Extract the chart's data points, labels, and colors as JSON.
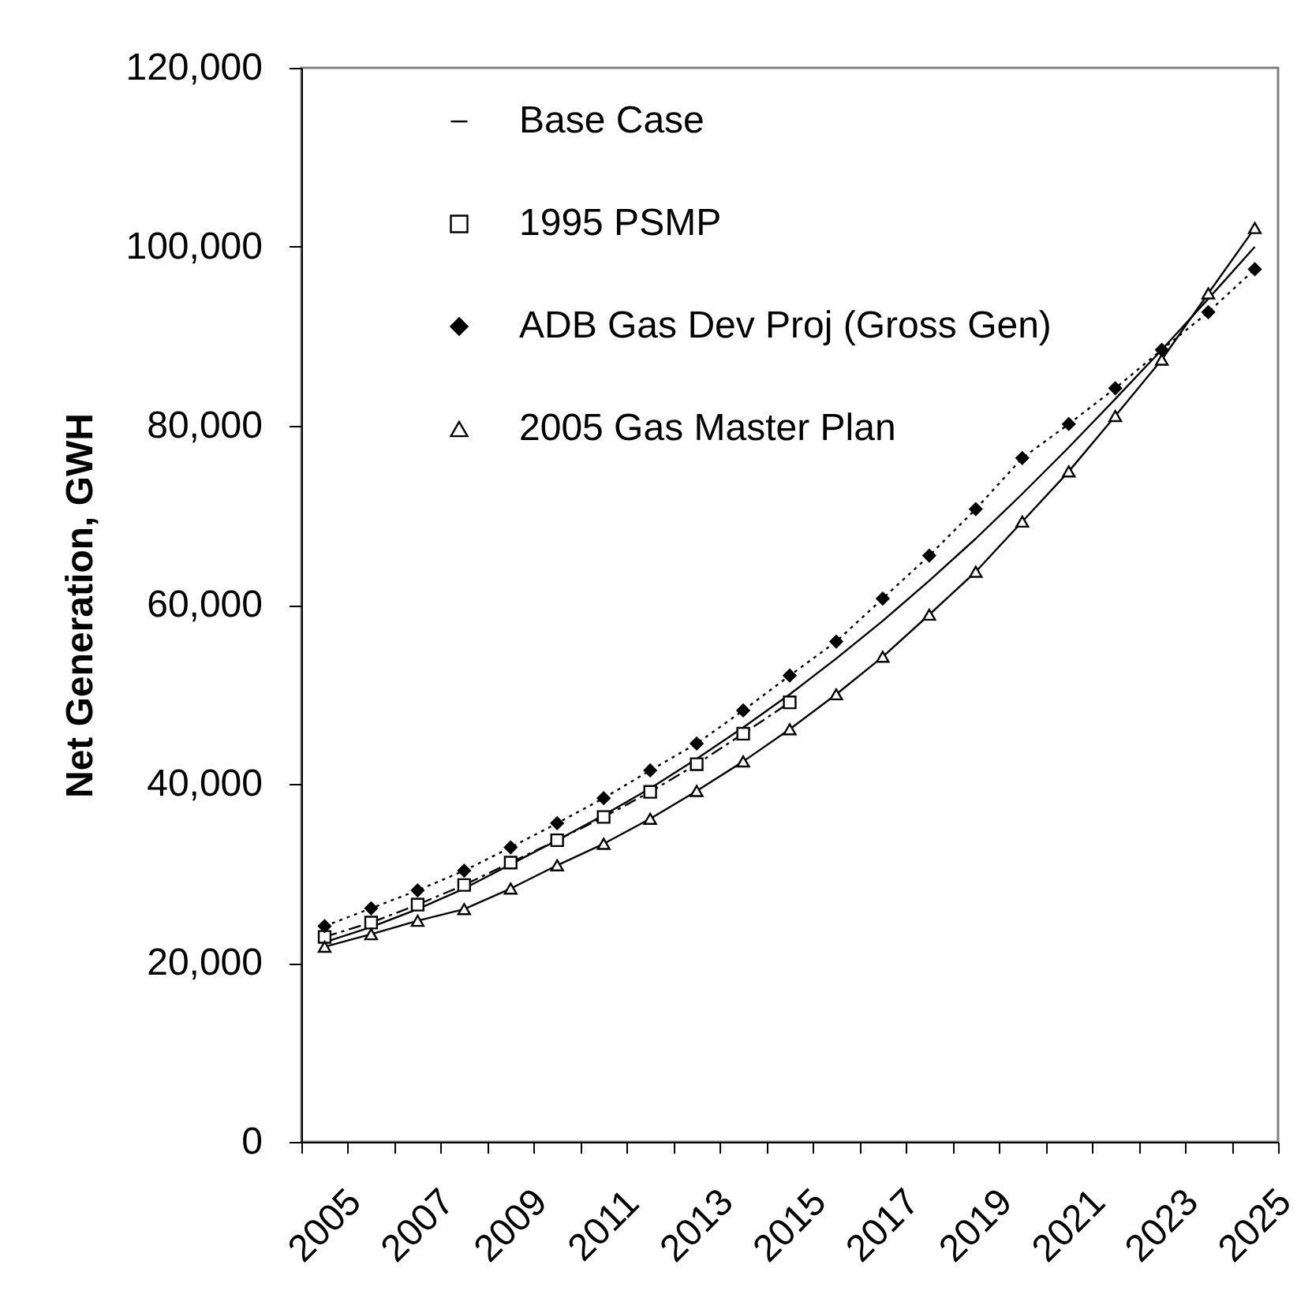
{
  "chart_data": {
    "type": "line",
    "ylabel": "Net Generation, GWH",
    "categories": [
      "2005",
      null,
      "2007",
      null,
      "2009",
      null,
      "2011",
      null,
      "2013",
      null,
      "2015",
      null,
      "2017",
      null,
      "2019",
      null,
      "2021",
      null,
      "2023",
      null,
      "2025"
    ],
    "ylim": [
      0,
      120000
    ],
    "yticks": [
      {
        "value": 0,
        "label": "0"
      },
      {
        "value": 20000,
        "label": "20,000"
      },
      {
        "value": 40000,
        "label": "40,000"
      },
      {
        "value": 60000,
        "label": "60,000"
      },
      {
        "value": 80000,
        "label": "80,000"
      },
      {
        "value": 100000,
        "label": "100,000"
      },
      {
        "value": 120000,
        "label": "120,000"
      }
    ],
    "legend": "top left",
    "series": [
      {
        "name": "Base Case",
        "color": "#000000",
        "line_style": "solid",
        "marker": "none",
        "values": [
          22300,
          24000,
          26000,
          28300,
          31000,
          33700,
          36500,
          39500,
          42800,
          46300,
          50000,
          54000,
          58200,
          62700,
          67400,
          72400,
          77600,
          83000,
          88500,
          94200,
          100000
        ]
      },
      {
        "name": "1995 PSMP",
        "color": "#000000",
        "line_style": "dashed",
        "marker": "square",
        "values": [
          22900,
          24500,
          26500,
          28700,
          31200,
          33700,
          36300,
          39100,
          42200,
          45600,
          49100,
          null,
          null,
          null,
          null,
          null,
          null,
          null,
          null,
          null,
          null
        ]
      },
      {
        "name": "ADB Gas Dev Proj (Gross Gen)",
        "color": "#000000",
        "line_style": "dotted",
        "marker": "diamond",
        "values": [
          24100,
          26100,
          28100,
          30300,
          32900,
          35600,
          38400,
          41500,
          44500,
          48200,
          52100,
          55900,
          60700,
          65500,
          70700,
          76400,
          80200,
          84200,
          88500,
          92700,
          97500
        ]
      },
      {
        "name": "2005 Gas Master Plan",
        "color": "#000000",
        "line_style": "solid",
        "marker": "triangle",
        "values": [
          21800,
          23200,
          24700,
          26000,
          28300,
          30900,
          33300,
          36100,
          39200,
          42500,
          46100,
          50000,
          54200,
          58900,
          63700,
          69300,
          74900,
          81100,
          87400,
          94800,
          102100
        ]
      }
    ]
  }
}
